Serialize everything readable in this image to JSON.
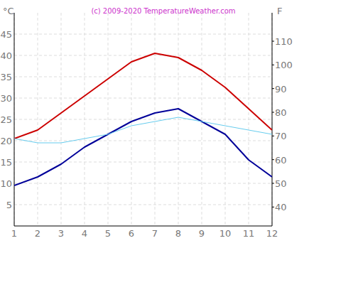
{
  "chart_data": {
    "type": "line",
    "title": "(c) 2009-2020 TemperatureWeather.com",
    "y_label": "°C",
    "y2_label": "F",
    "x": [
      1,
      2,
      3,
      4,
      5,
      6,
      7,
      8,
      9,
      10,
      11,
      12
    ],
    "xlim": [
      1,
      12
    ],
    "xticks": [
      1,
      2,
      3,
      4,
      5,
      6,
      7,
      8,
      9,
      10,
      11,
      12
    ],
    "ylim": [
      0,
      50
    ],
    "yticks": [
      5,
      10,
      15,
      20,
      25,
      30,
      35,
      40,
      45
    ],
    "y2lim": [
      32,
      122
    ],
    "y2ticks": [
      40,
      50,
      60,
      70,
      80,
      90,
      100,
      110
    ],
    "grid": true,
    "series": [
      {
        "color": "#cc0000",
        "values": [
          20.5,
          22.5,
          26.5,
          30.5,
          34.5,
          38.5,
          40.5,
          39.5,
          36.5,
          32.5,
          27.5,
          22.5
        ]
      },
      {
        "color": "#000099",
        "values": [
          9.5,
          11.5,
          14.5,
          18.5,
          21.5,
          24.5,
          26.5,
          27.5,
          24.5,
          21.5,
          15.5,
          11.5
        ]
      },
      {
        "color": "#66ccee",
        "values": [
          20.5,
          19.5,
          19.5,
          20.5,
          21.5,
          23.5,
          24.5,
          25.5,
          24.5,
          23.5,
          22.5,
          21.5
        ]
      }
    ]
  }
}
